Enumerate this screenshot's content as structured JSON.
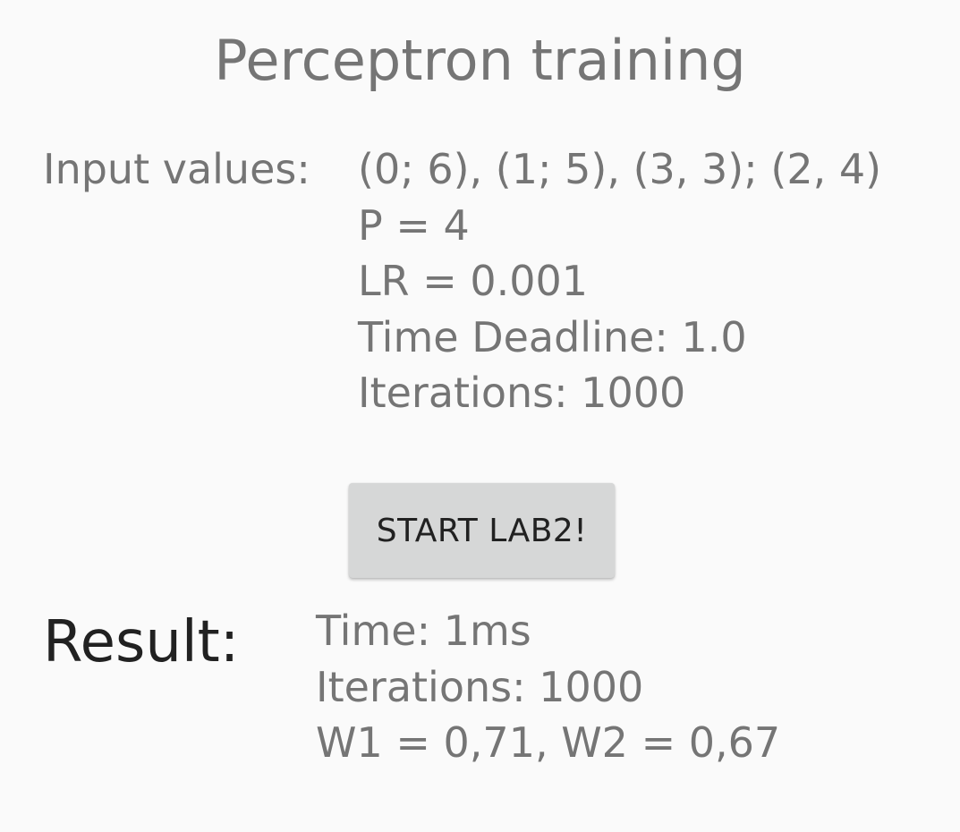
{
  "title": "Perceptron training",
  "input": {
    "label": "Input values:",
    "values": "(0; 6), (1; 5), (3, 3); (2, 4)",
    "p": "P = 4",
    "lr": "LR = 0.001",
    "deadline": "Time Deadline: 1.0",
    "iterations": "Iterations: 1000"
  },
  "start_button": {
    "label": "START LAB2!"
  },
  "result": {
    "label": "Result:",
    "time": "Time: 1ms",
    "iterations": "Iterations: 1000",
    "weights": "W1 = 0,71, W2 = 0,67"
  }
}
